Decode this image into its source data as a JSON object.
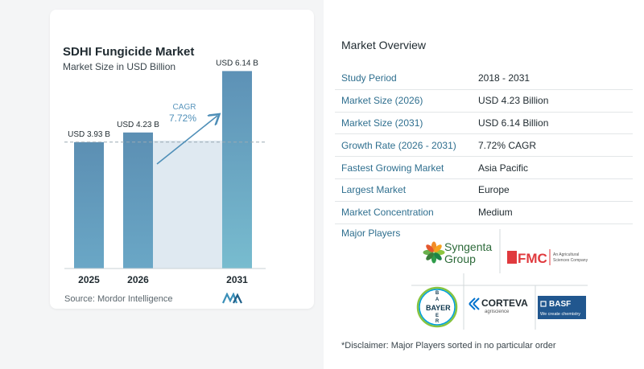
{
  "chart_data": {
    "type": "bar",
    "title": "SDHI Fungicide Market",
    "subtitle": "Market Size in USD Billion",
    "categories": [
      "2025",
      "2026",
      "2031"
    ],
    "values": [
      3.93,
      4.23,
      6.14
    ],
    "value_labels": [
      "USD 3.93 B",
      "USD 4.23 B",
      "USD 6.14 B"
    ],
    "cagr_label": "CAGR",
    "cagr_value": "7.72%",
    "ylim": [
      0,
      6.6
    ]
  },
  "source": "Source:  Mordor Intelligence",
  "overview": {
    "title": "Market Overview",
    "rows": [
      {
        "key": "Study Period",
        "value": "2018 - 2031"
      },
      {
        "key": "Market Size (2026)",
        "value": "USD 4.23 Billion"
      },
      {
        "key": "Market Size (2031)",
        "value": "USD 6.14 Billion"
      },
      {
        "key": "Growth Rate (2026 - 2031)",
        "value": "7.72% CAGR"
      },
      {
        "key": "Fastest Growing Market",
        "value": "Asia Pacific"
      },
      {
        "key": "Largest Market",
        "value": "Europe"
      },
      {
        "key": "Market Concentration",
        "value": "Medium"
      }
    ],
    "players_title": "Major Players",
    "players": {
      "syngenta": [
        "Syngenta",
        "Group"
      ],
      "fmc": {
        "name": "FMC",
        "tagline": [
          "An Agricultural",
          "Sciences Company"
        ]
      },
      "bayer": "BAYER",
      "corteva": {
        "name": "CORTEVA",
        "tagline": "agriscience"
      },
      "basf": {
        "name": "BASF",
        "tagline": "We create chemistry"
      }
    },
    "disclaimer": "*Disclaimer: Major Players sorted in no particular order"
  },
  "colors": {
    "bar": "#5b93b6",
    "bar_last": "#5d9ec2",
    "band": "#dfe9f1",
    "accent": "#2f6f8f"
  }
}
